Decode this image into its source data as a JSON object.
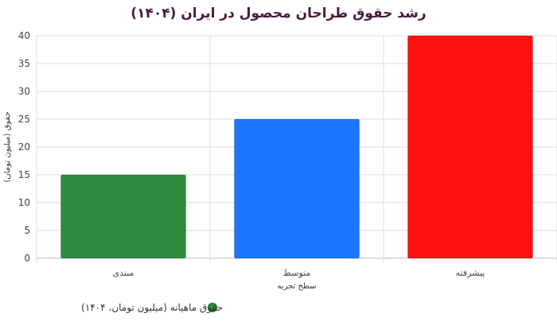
{
  "chart_data": {
    "type": "bar",
    "title": "رشد حقوق طراحان محصول در ایران (۱۴۰۴)",
    "categories": [
      "مبتدی",
      "متوسط",
      "پیشرفته"
    ],
    "series": [
      {
        "name": "حقوق ماهیانه (میلیون تومان، ۱۴۰۴)",
        "values": [
          15,
          25,
          40
        ]
      }
    ],
    "bar_colors": [
      "#2e8b3e",
      "#1a75ff",
      "#ff1111"
    ],
    "xlabel": "سطح تجربه",
    "ylabel": "حقوق (میلیون تومان)",
    "ylim": [
      0,
      40
    ],
    "yticks": [
      0,
      5,
      10,
      15,
      20,
      25,
      30,
      35,
      40
    ],
    "grid": true,
    "legend_position": "bottom",
    "legend_marker_color": "#2e8b3e"
  }
}
